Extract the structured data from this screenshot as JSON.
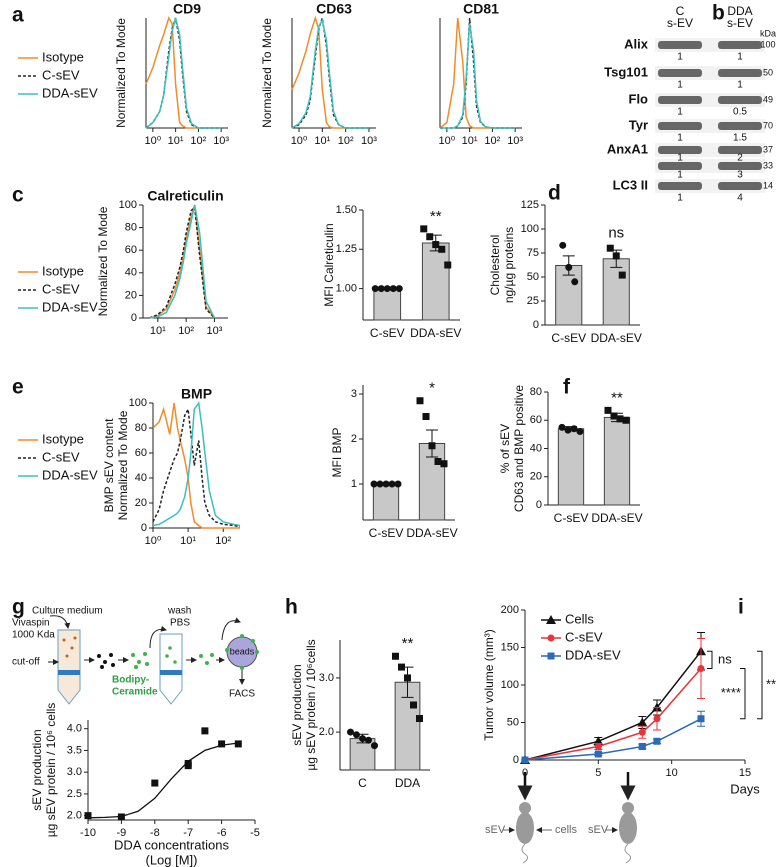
{
  "panels": [
    "a",
    "b",
    "c",
    "d",
    "e",
    "f",
    "g",
    "h",
    "i"
  ],
  "blot": {
    "columns": [
      [
        "C",
        "s-EV"
      ],
      [
        "DDA",
        "s-EV"
      ]
    ],
    "unit": "kDa",
    "rows": [
      {
        "label": "Alix",
        "kda": [
          100
        ],
        "quant": [
          [
            1,
            1
          ]
        ]
      },
      {
        "label": "Tsg101",
        "kda": [
          50
        ],
        "quant": [
          [
            1,
            1
          ]
        ]
      },
      {
        "label": "Flo",
        "kda": [
          49
        ],
        "quant": [
          [
            1,
            0.5
          ]
        ]
      },
      {
        "label": "Tyr",
        "kda": [
          70
        ],
        "quant": [
          [
            1,
            1.5
          ]
        ]
      },
      {
        "label": "AnxA1",
        "kda": [
          37,
          33
        ],
        "quant": [
          [
            1,
            2
          ],
          [
            1,
            3
          ]
        ]
      },
      {
        "label": "LC3 II",
        "kda": [
          14
        ],
        "quant": [
          [
            1,
            4
          ]
        ]
      }
    ]
  },
  "schematic": {
    "culture_medium": "Culture medium",
    "vivaspin": "Vivaspin",
    "cutoff_size": "1000 Kda",
    "cutoff": "cut-off",
    "dye": [
      "Bodipy-",
      "Ceramide"
    ],
    "wash": "wash",
    "pbs": "PBS",
    "beads": "beads",
    "facs": "FACS"
  },
  "injection": [
    "sEV",
    "cells",
    "sEV"
  ],
  "chart_data": [
    {
      "type": "line",
      "title": "CD9",
      "xscale": "log",
      "xlim": [
        0.5,
        2000
      ],
      "xticks": [
        {
          "value": 1,
          "label": "10⁰"
        },
        {
          "value": 10,
          "label": "10¹"
        },
        {
          "value": 100,
          "label": "10²"
        },
        {
          "value": 1000,
          "label": "10³"
        }
      ],
      "ylim": [
        0,
        100
      ],
      "ylabel": "Normalized To Mode",
      "legend": "outside-left",
      "x": [
        0.5,
        1,
        2,
        3,
        5,
        7,
        10,
        15,
        20,
        30,
        50,
        100,
        1000
      ],
      "series": [
        {
          "name": "Isotype",
          "color": "#f28c28",
          "values": [
            40,
            55,
            75,
            85,
            100,
            95,
            40,
            5,
            2,
            0,
            0,
            0,
            0
          ]
        },
        {
          "name": "C-sEV",
          "color": "#222222",
          "dash": true,
          "values": [
            0,
            5,
            15,
            30,
            70,
            90,
            100,
            80,
            50,
            15,
            3,
            0,
            0
          ]
        },
        {
          "name": "DDA-sEV",
          "color": "#3bbfbf",
          "values": [
            0,
            5,
            15,
            30,
            65,
            88,
            100,
            85,
            55,
            18,
            4,
            0,
            0
          ]
        }
      ]
    },
    {
      "type": "line",
      "title": "CD63",
      "xscale": "log",
      "xlim": [
        0.5,
        2000
      ],
      "xticks": [
        {
          "value": 1,
          "label": "10⁰"
        },
        {
          "value": 10,
          "label": "10¹"
        },
        {
          "value": 100,
          "label": "10²"
        },
        {
          "value": 1000,
          "label": "10³"
        }
      ],
      "ylim": [
        0,
        100
      ],
      "ylabel": "Normalized To Mode",
      "x": [
        0.5,
        1,
        2,
        3,
        5,
        7,
        10,
        15,
        20,
        30,
        50,
        100,
        1000
      ],
      "series": [
        {
          "color": "#f28c28",
          "values": [
            35,
            50,
            70,
            85,
            100,
            90,
            35,
            5,
            1,
            0,
            0,
            0,
            0
          ]
        },
        {
          "color": "#222222",
          "dash": true,
          "values": [
            0,
            3,
            12,
            25,
            65,
            90,
            100,
            75,
            45,
            12,
            3,
            0,
            0
          ]
        },
        {
          "color": "#3bbfbf",
          "values": [
            0,
            4,
            14,
            28,
            70,
            92,
            98,
            80,
            50,
            15,
            3,
            0,
            0
          ]
        }
      ]
    },
    {
      "type": "line",
      "title": "CD81",
      "xscale": "log",
      "xlim": [
        0.5,
        2000
      ],
      "xticks": [
        {
          "value": 1,
          "label": "10⁰"
        },
        {
          "value": 10,
          "label": "10¹"
        },
        {
          "value": 100,
          "label": "10²"
        },
        {
          "value": 1000,
          "label": "10³"
        }
      ],
      "ylim": [
        0,
        100
      ],
      "x": [
        0.5,
        1,
        2,
        3,
        5,
        7,
        10,
        15,
        20,
        30,
        50,
        100,
        1000
      ],
      "series": [
        {
          "color": "#f28c28",
          "values": [
            0,
            5,
            40,
            100,
            60,
            10,
            2,
            0,
            0,
            0,
            0,
            0,
            0
          ]
        },
        {
          "color": "#222222",
          "dash": true,
          "values": [
            0,
            0,
            0,
            2,
            10,
            40,
            100,
            60,
            20,
            5,
            1,
            0,
            0
          ]
        },
        {
          "color": "#3bbfbf",
          "values": [
            0,
            0,
            0,
            2,
            12,
            45,
            95,
            70,
            25,
            6,
            1,
            0,
            0
          ]
        }
      ]
    },
    {
      "type": "line",
      "title": "Calreticulin",
      "xscale": "log",
      "xlim": [
        3,
        3000
      ],
      "xticks": [
        {
          "value": 10,
          "label": "10¹"
        },
        {
          "value": 100,
          "label": "10²"
        },
        {
          "value": 1000,
          "label": "10³"
        }
      ],
      "ylim": [
        0,
        100
      ],
      "yticks": [
        0,
        20,
        40,
        60,
        80,
        100
      ],
      "ylabel": "Normalized To Mode",
      "legend": "outside-left",
      "x": [
        5,
        10,
        20,
        40,
        60,
        80,
        100,
        150,
        200,
        300,
        500,
        1000
      ],
      "series": [
        {
          "name": "Isotype",
          "color": "#f28c28",
          "values": [
            0,
            2,
            8,
            25,
            40,
            55,
            70,
            90,
            100,
            60,
            10,
            0
          ]
        },
        {
          "name": "C-sEV",
          "color": "#222222",
          "dash": true,
          "values": [
            0,
            3,
            10,
            30,
            45,
            60,
            75,
            95,
            98,
            55,
            8,
            0
          ]
        },
        {
          "name": "DDA-sEV",
          "color": "#3bbfbf",
          "values": [
            0,
            1,
            5,
            20,
            35,
            50,
            65,
            85,
            100,
            75,
            15,
            0
          ]
        }
      ]
    },
    {
      "type": "bar",
      "ylabel": "MFI  Calreticulin",
      "categories": [
        "C-sEV",
        "DDA-sEV"
      ],
      "values": [
        1,
        1.29
      ],
      "errors": [
        0,
        0.05
      ],
      "points": [
        [
          1,
          1,
          1,
          1,
          1
        ],
        [
          1.38,
          1.33,
          1.28,
          1.25,
          1.15
        ]
      ],
      "point_shapes": [
        "circle",
        "square"
      ],
      "significance": "**",
      "ylim": [
        0.8,
        1.5
      ],
      "yticks": [
        {
          "value": 1,
          "label": "1.00"
        },
        {
          "value": 1.25,
          "label": "1.25"
        },
        {
          "value": 1.5,
          "label": "1.50"
        }
      ],
      "color": "#c8c8c8"
    },
    {
      "type": "bar",
      "ylabel": [
        "Cholesterol",
        "ng/µg proteins"
      ],
      "categories": [
        "C-sEV",
        "DDA-sEV"
      ],
      "values": [
        62,
        69
      ],
      "errors": [
        10,
        9
      ],
      "points": [
        [
          83,
          60,
          45
        ],
        [
          80,
          72,
          52
        ]
      ],
      "point_shapes": [
        "circle",
        "square"
      ],
      "significance": "ns",
      "ylim": [
        0,
        125
      ],
      "yticks": [
        0,
        25,
        50,
        75,
        100,
        125
      ],
      "color": "#c8c8c8"
    },
    {
      "type": "line",
      "title": "BMP",
      "xscale": "log",
      "xlim": [
        1,
        300
      ],
      "xticks": [
        {
          "value": 1,
          "label": "10⁰"
        },
        {
          "value": 10,
          "label": "10¹"
        },
        {
          "value": 100,
          "label": "10²"
        }
      ],
      "ylim": [
        0,
        100
      ],
      "yticks": [
        0,
        20,
        40,
        60,
        80,
        100
      ],
      "ylabel": [
        "BMP sEV content",
        "Normalized To Mode"
      ],
      "legend": "outside-left",
      "x": [
        1,
        1.5,
        2,
        3,
        4,
        5,
        6,
        8,
        10,
        12,
        15,
        20,
        25,
        30,
        40,
        60,
        100,
        200,
        300
      ],
      "series": [
        {
          "name": "Isotype",
          "color": "#f28c28",
          "values": [
            80,
            85,
            95,
            75,
            100,
            80,
            70,
            55,
            40,
            20,
            5,
            2,
            0,
            0,
            0,
            0,
            0,
            0,
            0
          ]
        },
        {
          "name": "C-sEV",
          "color": "#222222",
          "dash": true,
          "values": [
            5,
            15,
            30,
            45,
            55,
            60,
            70,
            90,
            95,
            75,
            50,
            70,
            40,
            20,
            10,
            5,
            3,
            2,
            1
          ]
        },
        {
          "name": "DDA-sEV",
          "color": "#3bbfbf",
          "values": [
            2,
            3,
            5,
            8,
            10,
            12,
            15,
            25,
            40,
            60,
            95,
            100,
            80,
            60,
            30,
            10,
            5,
            3,
            2
          ]
        }
      ]
    },
    {
      "type": "bar",
      "ylabel": "MFI  BMP",
      "categories": [
        "C-sEV",
        "DDA-sEV"
      ],
      "values": [
        1,
        1.9
      ],
      "errors": [
        0,
        0.3
      ],
      "points": [
        [
          1,
          1,
          1,
          1,
          1
        ],
        [
          2.85,
          2.5,
          1.85,
          1.5,
          1.45
        ]
      ],
      "point_shapes": [
        "circle",
        "square"
      ],
      "significance": "*",
      "ylim": [
        0.2,
        3.2
      ],
      "yticks": [
        1,
        2,
        3
      ],
      "color": "#c8c8c8"
    },
    {
      "type": "bar",
      "ylabel": [
        "% of sEV",
        "CD63 and BMP positive"
      ],
      "categories": [
        "C-sEV",
        "DDA-sEV"
      ],
      "values": [
        54,
        62
      ],
      "errors": [
        1.5,
        3
      ],
      "points": [
        [
          55,
          53,
          54,
          52
        ],
        [
          67,
          63,
          61,
          60
        ]
      ],
      "point_shapes": [
        "circle",
        "square"
      ],
      "significance": "**",
      "ylim": [
        0,
        80
      ],
      "yticks": [
        0,
        20,
        40,
        60,
        80
      ],
      "color": "#c8c8c8"
    },
    {
      "type": "scatter",
      "ylabel": [
        "sEV production",
        "µg sEV protein / 10⁶ cells"
      ],
      "xlabel": [
        "DDA concentrations",
        "(Log [M])"
      ],
      "xlim": [
        -10,
        -5
      ],
      "xticks": [
        -10,
        -9,
        -8,
        -7,
        -6,
        -5
      ],
      "ylim": [
        1.9,
        4.2
      ],
      "yticks": [
        {
          "value": 2,
          "label": "2.0"
        },
        {
          "value": 2.5,
          "label": "2.5"
        },
        {
          "value": 3,
          "label": "3.0"
        },
        {
          "value": 3.5,
          "label": "3.5"
        },
        {
          "value": 4,
          "label": "4.0"
        }
      ],
      "color": "#111111",
      "x": [
        -10,
        -9,
        -8,
        -7,
        -7,
        -6.5,
        -6,
        -5.5
      ],
      "values": [
        2.0,
        1.97,
        2.75,
        3.15,
        3.2,
        3.95,
        3.65,
        3.65
      ],
      "fit": {
        "x": [
          -10,
          -9.5,
          -9,
          -8.5,
          -8,
          -7.5,
          -7,
          -6.5,
          -6,
          -5.5
        ],
        "values": [
          1.95,
          1.96,
          1.98,
          2.1,
          2.4,
          2.85,
          3.25,
          3.5,
          3.62,
          3.67
        ]
      }
    },
    {
      "type": "bar",
      "ylabel": [
        "sEV production",
        "µg sEV protein / 10⁶cells"
      ],
      "categories": [
        "C",
        "DDA"
      ],
      "values": [
        1.88,
        2.92
      ],
      "errors": [
        0.08,
        0.28
      ],
      "points": [
        [
          2.0,
          1.95,
          1.88,
          1.85,
          1.75
        ],
        [
          3.4,
          3.2,
          3.0,
          2.5,
          2.25
        ]
      ],
      "point_shapes": [
        "circle",
        "square"
      ],
      "significance": "**",
      "ylim": [
        1.3,
        3.7
      ],
      "yticks": [
        {
          "value": 2,
          "label": "2.0"
        },
        {
          "value": 3,
          "label": "3.0"
        }
      ],
      "color": "#c8c8c8"
    },
    {
      "type": "line",
      "xlabel": "Days",
      "ylabel": "Tumor volume (mm³)",
      "xlim": [
        0,
        15
      ],
      "xticks": [
        0,
        5,
        10,
        15
      ],
      "ylim": [
        0,
        200
      ],
      "yticks": [
        0,
        50,
        100,
        150,
        200
      ],
      "legend": "upper-left",
      "x": [
        0,
        5,
        8,
        9,
        12
      ],
      "series": [
        {
          "name": "Cells",
          "color": "#111111",
          "marker": "triangle",
          "values": [
            0,
            25,
            50,
            70,
            145
          ],
          "errors": [
            0,
            5,
            8,
            10,
            25
          ]
        },
        {
          "name": "C-sEV",
          "color": "#e8333a",
          "marker": "circle",
          "values": [
            0,
            18,
            37,
            55,
            122
          ],
          "errors": [
            0,
            4,
            8,
            15,
            40
          ]
        },
        {
          "name": "DDA-sEV",
          "color": "#2a6ab8",
          "marker": "square",
          "values": [
            0,
            8,
            18,
            25,
            55
          ],
          "errors": [
            0,
            2,
            3,
            3,
            10
          ]
        }
      ],
      "annotations": [
        "ns",
        "****",
        "**"
      ]
    }
  ]
}
